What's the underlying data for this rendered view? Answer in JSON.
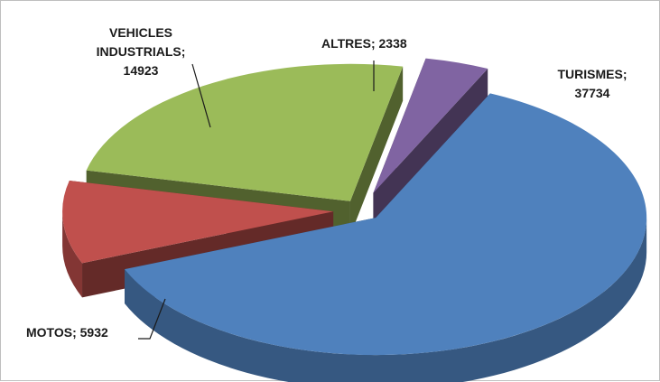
{
  "chart_data": {
    "type": "pie",
    "title": "",
    "style": "3d-exploded",
    "slices": [
      {
        "name": "TURISMES",
        "value": 37734,
        "color": "#4F81BD",
        "label_lines": [
          "TURISMES;",
          "37734"
        ]
      },
      {
        "name": "MOTOS",
        "value": 5932,
        "color": "#C0504D",
        "label_lines": [
          "MOTOS; 5932"
        ]
      },
      {
        "name": "VEHICLES INDUSTRIALS",
        "value": 14923,
        "color": "#9BBB59",
        "label_lines": [
          "VEHICLES",
          "INDUSTRIALS;",
          "14923"
        ]
      },
      {
        "name": "ALTRES",
        "value": 2338,
        "color": "#8064A2",
        "label_lines": [
          "ALTRES; 2338"
        ]
      }
    ],
    "legend": "none",
    "data_labels": "outside-with-leader-lines"
  }
}
